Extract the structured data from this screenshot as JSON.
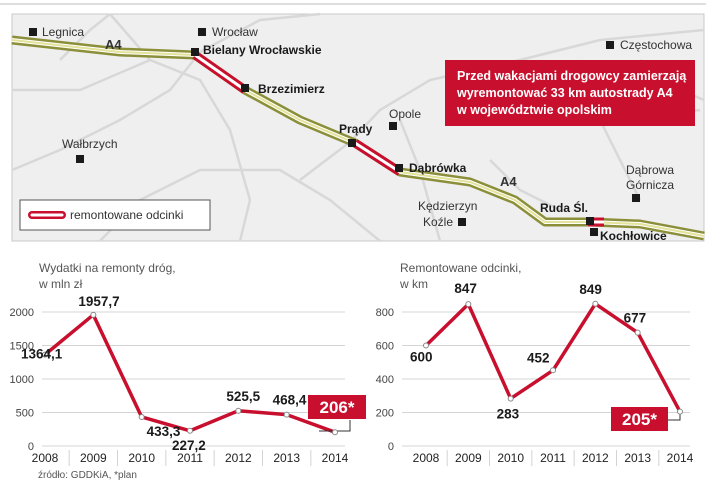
{
  "map": {
    "callout": {
      "line1": "Przed wakacjami drogowcy zamierzają",
      "line2": "wyremontować 33 km autostrady A4",
      "line3": "w województwie opolskim"
    },
    "legend_label": "remontowane odcinki",
    "road_labels": [
      "A4",
      "A4"
    ],
    "places": [
      {
        "id": "legnica",
        "label": "Legnica",
        "bold": false
      },
      {
        "id": "wroclaw",
        "label": "Wrocław",
        "bold": false
      },
      {
        "id": "bielany",
        "label": "Bielany Wrocławskie",
        "bold": true
      },
      {
        "id": "brzezimierz",
        "label": "Brzezimierz",
        "bold": true
      },
      {
        "id": "czestochowa",
        "label": "Częstochowa",
        "bold": false
      },
      {
        "id": "opole",
        "label": "Opole",
        "bold": false
      },
      {
        "id": "prady",
        "label": "Prądy",
        "bold": true
      },
      {
        "id": "dabrowka",
        "label": "Dąbrówka",
        "bold": true
      },
      {
        "id": "walbrzych",
        "label": "Wałbrzych",
        "bold": false
      },
      {
        "id": "kedzierzyn1",
        "label": "Kędzierzyn",
        "bold": false
      },
      {
        "id": "kedzierzyn2",
        "label": "Koźle",
        "bold": false
      },
      {
        "id": "dabrowa1",
        "label": "Dąbrowa",
        "bold": false
      },
      {
        "id": "dabrowa2",
        "label": "Górnicza",
        "bold": false
      },
      {
        "id": "ruda",
        "label": "Ruda Śl.",
        "bold": true
      },
      {
        "id": "kochlowice",
        "label": "Kochłowice",
        "bold": true
      }
    ]
  },
  "chart_data": [
    {
      "type": "line",
      "title": "Wydatki na remonty dróg,",
      "subtitle": "w mln zł",
      "categories": [
        "2008",
        "2009",
        "2010",
        "2011",
        "2012",
        "2013",
        "2014"
      ],
      "values": [
        1364.1,
        1957.7,
        433.3,
        227.2,
        525.5,
        468.4,
        206
      ],
      "data_labels": [
        "1364,1",
        "1957,7",
        "433,3",
        "227,2",
        "525,5",
        "468,4",
        "206*"
      ],
      "y_ticks": [
        "0",
        "500",
        "1000",
        "1500",
        "2000"
      ],
      "ylim": [
        0,
        2000
      ],
      "highlight_last": true,
      "color": "#c8102e"
    },
    {
      "type": "line",
      "title": "Remontowane odcinki,",
      "subtitle": "w km",
      "categories": [
        "2008",
        "2009",
        "2010",
        "2011",
        "2012",
        "2013",
        "2014"
      ],
      "values": [
        600,
        847,
        283,
        452,
        849,
        677,
        205
      ],
      "data_labels": [
        "600",
        "847",
        "283",
        "452",
        "849",
        "677",
        "205*"
      ],
      "y_ticks": [
        "0",
        "200",
        "400",
        "600",
        "800"
      ],
      "ylim": [
        0,
        800
      ],
      "highlight_last": true,
      "color": "#c8102e"
    }
  ],
  "source": "źródło: GDDKiA, *plan"
}
